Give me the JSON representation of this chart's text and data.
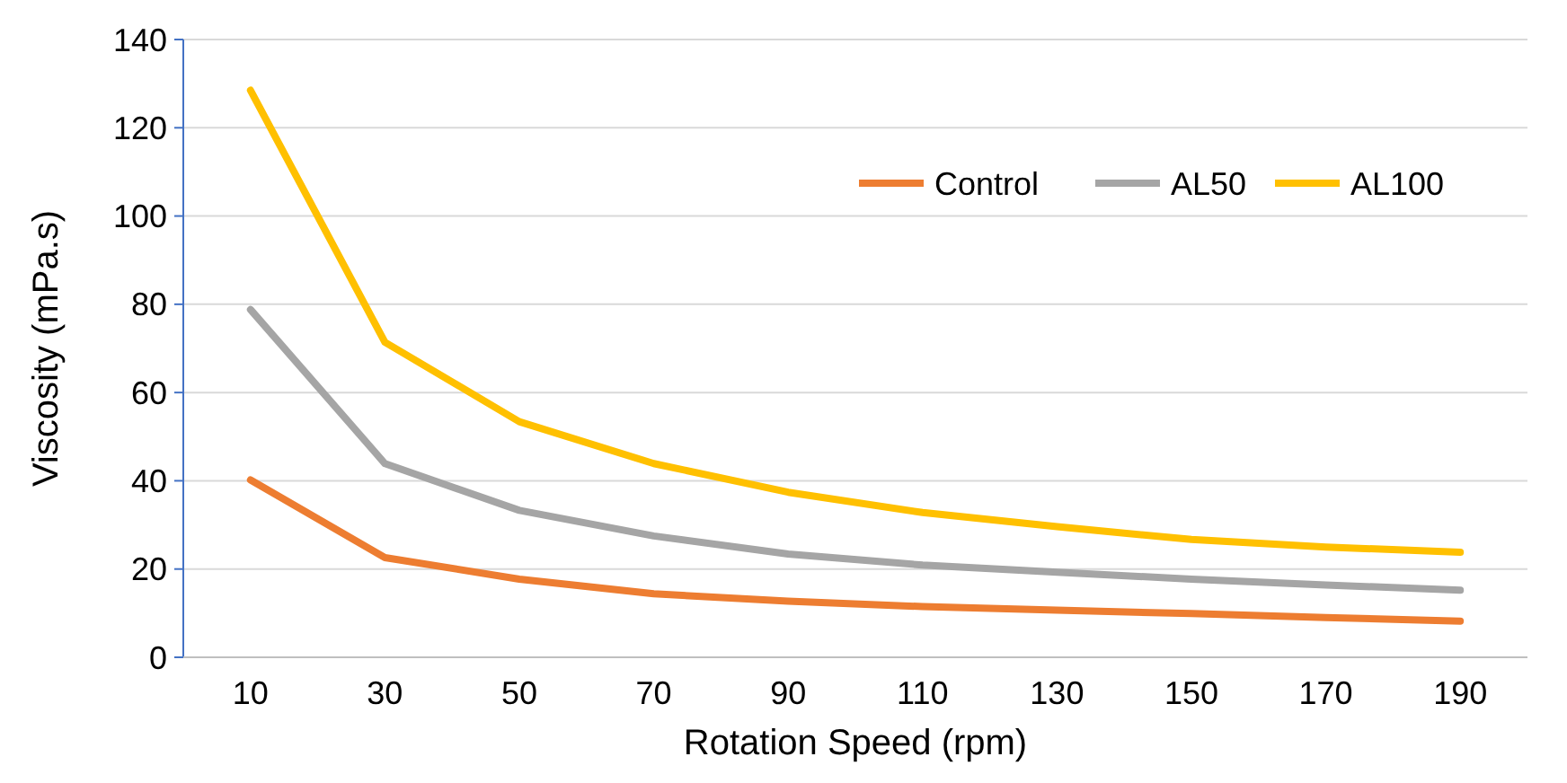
{
  "chart_data": {
    "type": "line",
    "xlabel": "Rotation Speed (rpm)",
    "ylabel": "Viscosity (mPa.s)",
    "categories": [
      "10",
      "30",
      "50",
      "70",
      "90",
      "110",
      "130",
      "150",
      "170",
      "190"
    ],
    "ylim": [
      0,
      140
    ],
    "yticks": [
      0,
      20,
      40,
      60,
      80,
      100,
      120,
      140
    ],
    "grid": "y",
    "legend": "top right",
    "marker": "none",
    "line_style": "solid",
    "series": [
      {
        "name": "Control",
        "color": "#ed7d31",
        "values": [
          40.2,
          22.6,
          17.7,
          14.4,
          12.7,
          11.5,
          10.7,
          9.9,
          9,
          8.2
        ]
      },
      {
        "name": "AL50",
        "color": "#a5a5a5",
        "values": [
          78.8,
          43.9,
          33.3,
          27.5,
          23.4,
          20.9,
          19.3,
          17.7,
          16.4,
          15.2
        ]
      },
      {
        "name": "AL100",
        "color": "#ffc000",
        "values": [
          128.5,
          71.4,
          53.4,
          43.9,
          37.4,
          32.8,
          29.6,
          26.7,
          25,
          23.8
        ]
      }
    ]
  }
}
